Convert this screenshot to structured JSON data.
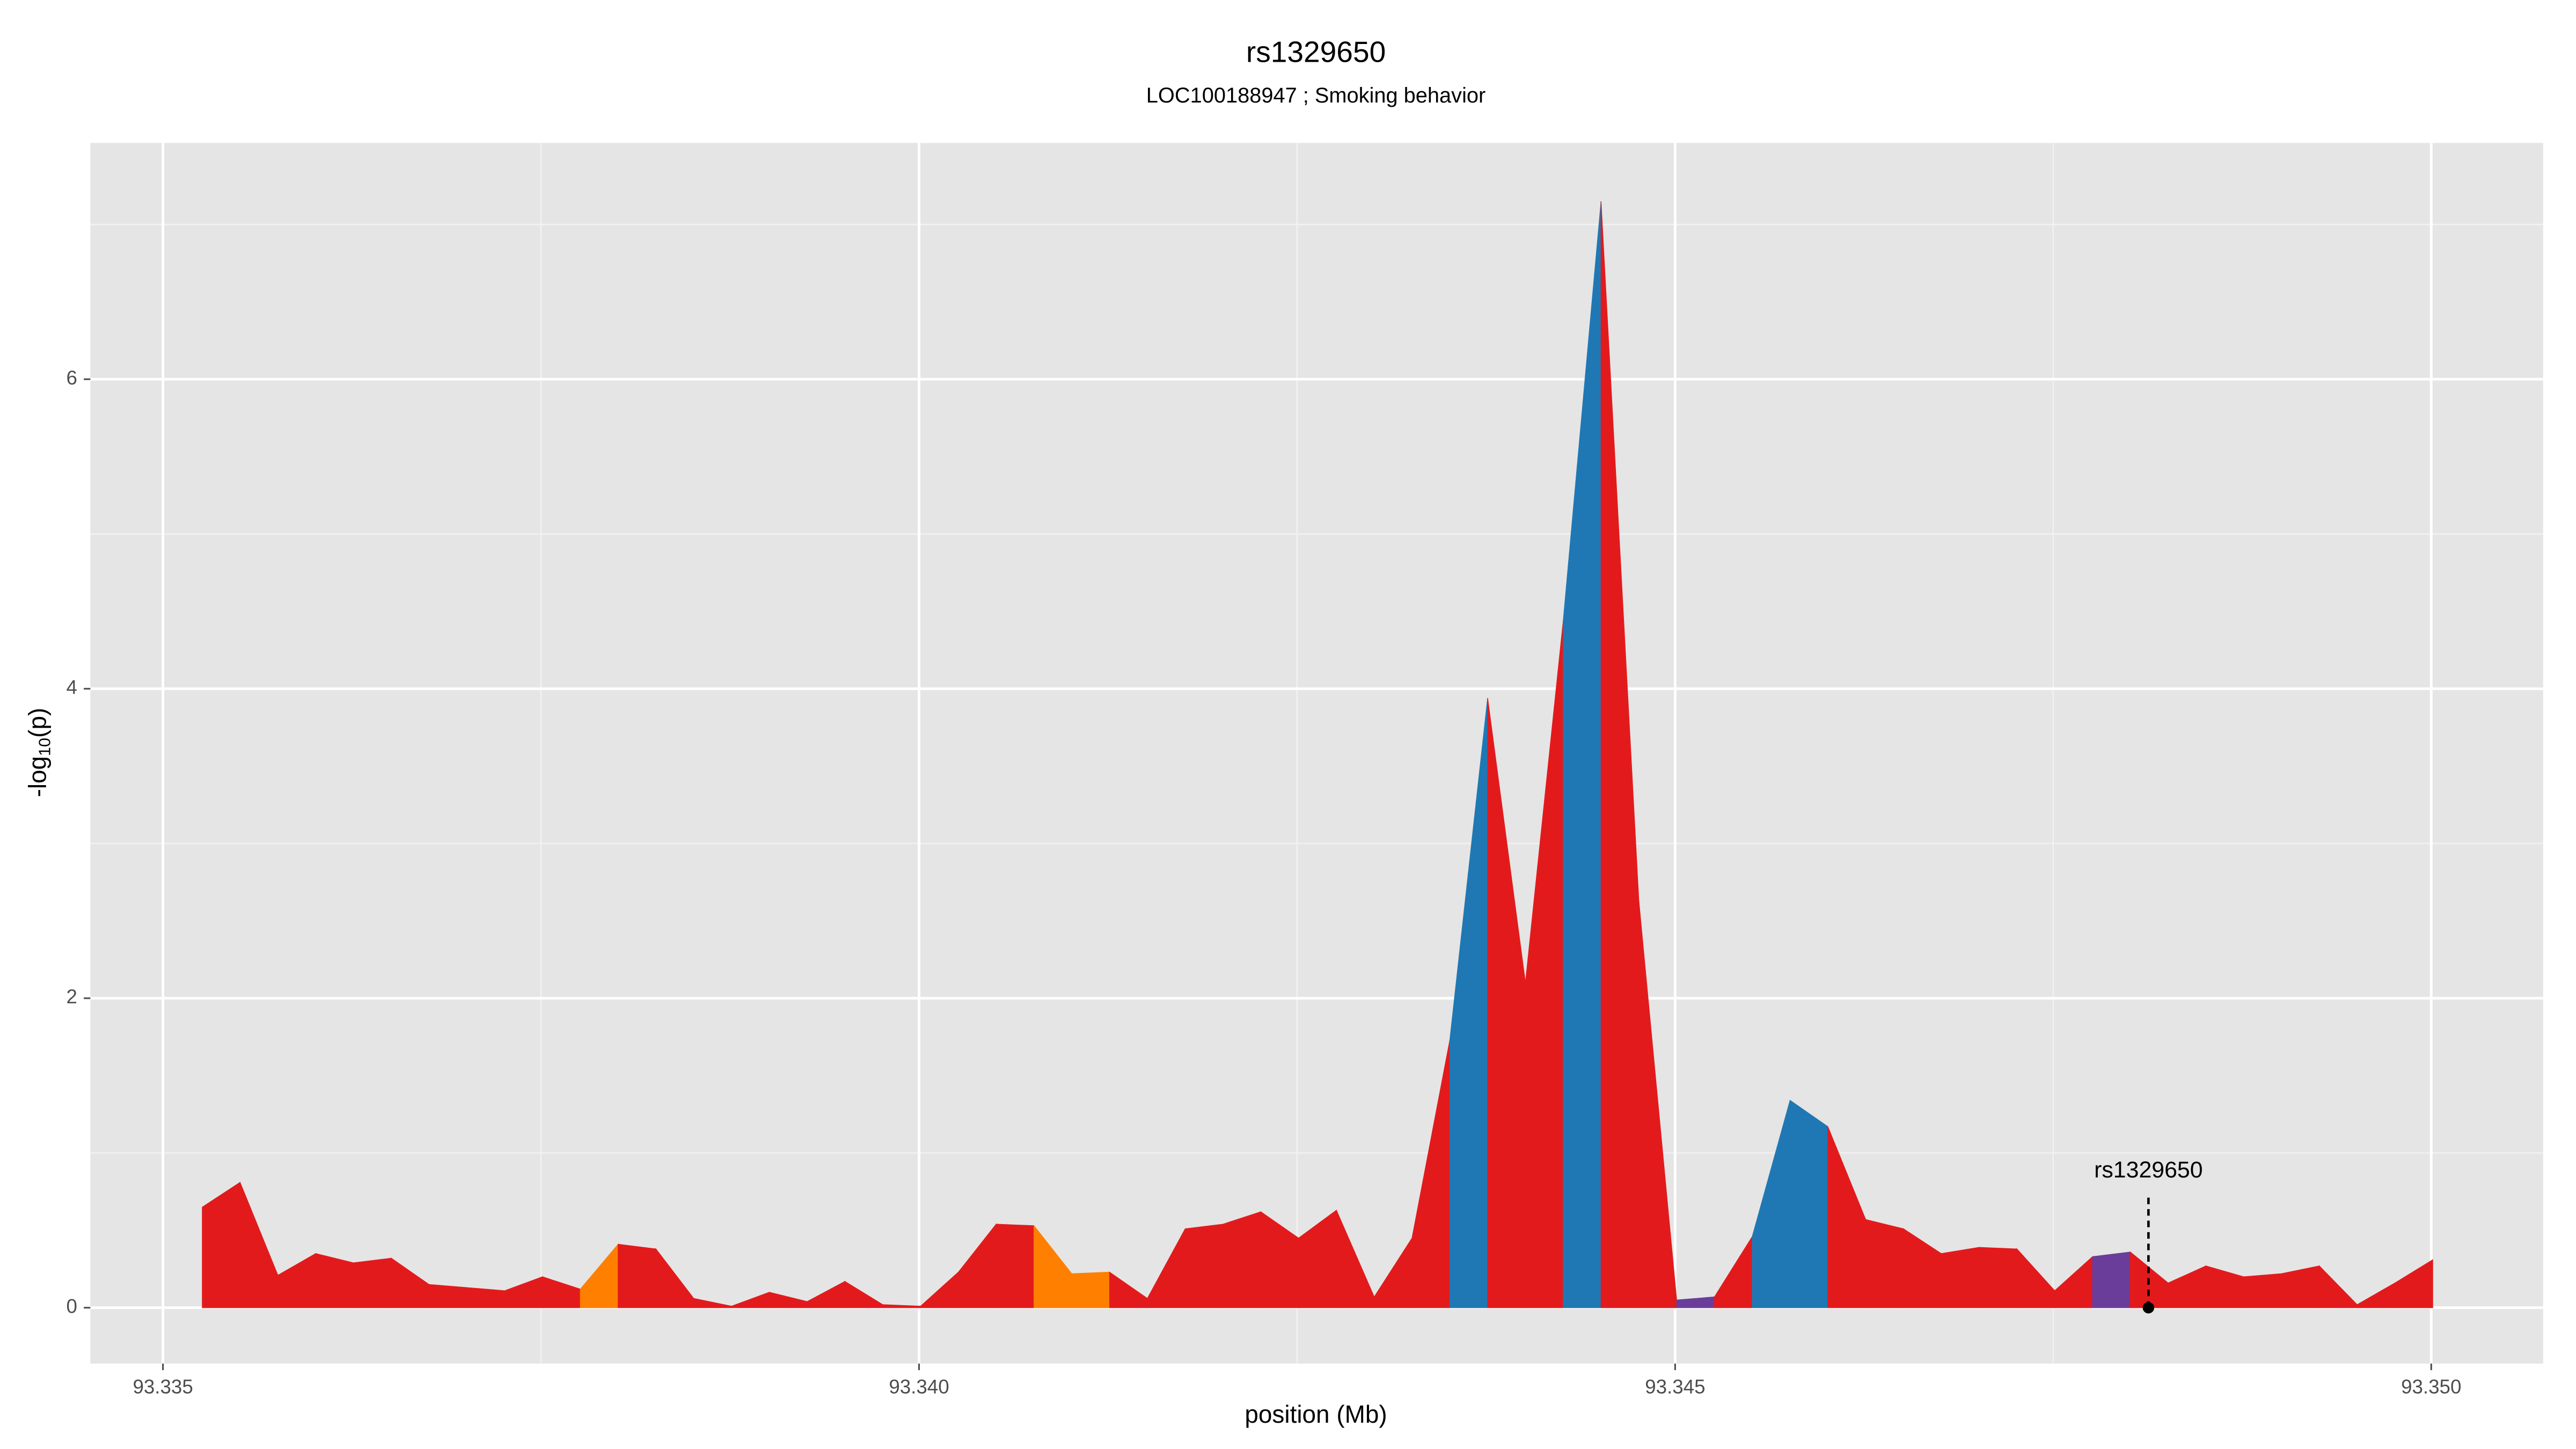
{
  "chart_data": {
    "type": "area",
    "title": "rs1329650",
    "subtitle": "LOC100188947 ; Smoking behavior",
    "xlabel": "position (Mb)",
    "ylabel": {
      "prefix": "-log",
      "sub": "10",
      "suffix": "(p)"
    },
    "x": [
      93.33526,
      93.33551,
      93.33576,
      93.33601,
      93.33626,
      93.33651,
      93.33676,
      93.33701,
      93.33726,
      93.33751,
      93.33776,
      93.33801,
      93.33826,
      93.33851,
      93.33876,
      93.33901,
      93.33926,
      93.33951,
      93.33976,
      93.34001,
      93.34026,
      93.34051,
      93.34076,
      93.34101,
      93.34126,
      93.34151,
      93.34176,
      93.34201,
      93.34226,
      93.34251,
      93.34276,
      93.34301,
      93.34326,
      93.34351,
      93.34376,
      93.34401,
      93.34426,
      93.34451,
      93.34476,
      93.34501,
      93.34526,
      93.34551,
      93.34576,
      93.34601,
      93.34626,
      93.34651,
      93.34676,
      93.34701,
      93.34726,
      93.34751,
      93.34776,
      93.34801,
      93.34826,
      93.34851,
      93.34876,
      93.34901,
      93.34926,
      93.34951,
      93.34976,
      93.35001
    ],
    "values": [
      0.65,
      0.81,
      0.21,
      0.35,
      0.29,
      0.32,
      0.15,
      0.13,
      0.11,
      0.2,
      0.12,
      0.41,
      0.38,
      0.06,
      0.01,
      0.1,
      0.04,
      0.17,
      0.02,
      0.01,
      0.23,
      0.54,
      0.53,
      0.22,
      0.23,
      0.06,
      0.51,
      0.54,
      0.62,
      0.45,
      0.63,
      0.07,
      0.45,
      1.73,
      3.94,
      2.1,
      4.44,
      7.15,
      2.63,
      0.05,
      0.07,
      0.46,
      1.34,
      1.17,
      0.57,
      0.51,
      0.35,
      0.39,
      0.38,
      0.11,
      0.33,
      0.36,
      0.16,
      0.27,
      0.2,
      0.22,
      0.27,
      0.02,
      0.16,
      0.31
    ],
    "segment_colors": [
      "#e31a1c",
      "#e31a1c",
      "#e31a1c",
      "#e31a1c",
      "#e31a1c",
      "#e31a1c",
      "#e31a1c",
      "#e31a1c",
      "#e31a1c",
      "#e31a1c",
      "#ff7f00",
      "#e31a1c",
      "#e31a1c",
      "#e31a1c",
      "#e31a1c",
      "#e31a1c",
      "#e31a1c",
      "#e31a1c",
      "#e31a1c",
      "#e31a1c",
      "#e31a1c",
      "#e31a1c",
      "#ff7f00",
      "#ff7f00",
      "#e31a1c",
      "#e31a1c",
      "#e31a1c",
      "#e31a1c",
      "#e31a1c",
      "#e31a1c",
      "#e31a1c",
      "#e31a1c",
      "#e31a1c",
      "#1f78b4",
      "#e31a1c",
      "#e31a1c",
      "#1f78b4",
      "#e31a1c",
      "#e31a1c",
      "#6a3d9a",
      "#e31a1c",
      "#1f78b4",
      "#1f78b4",
      "#e31a1c",
      "#e31a1c",
      "#e31a1c",
      "#e31a1c",
      "#e31a1c",
      "#e31a1c",
      "#e31a1c",
      "#6a3d9a",
      "#e31a1c",
      "#e31a1c",
      "#e31a1c",
      "#e31a1c",
      "#e31a1c",
      "#e31a1c",
      "#e31a1c",
      "#e31a1c"
    ],
    "annotation": {
      "text": "rs1329650",
      "x": 93.34813,
      "y": 0
    },
    "xlim": [
      93.33452,
      93.35074
    ],
    "ylim": [
      -0.361,
      7.527
    ],
    "xticks": [
      93.335,
      {
        "value": 93.34,
        "label": "93.340"
      },
      93.345,
      {
        "value": 93.35,
        "label": "93.350"
      }
    ],
    "yticks": [
      0,
      2,
      4,
      6
    ],
    "grid": true
  }
}
